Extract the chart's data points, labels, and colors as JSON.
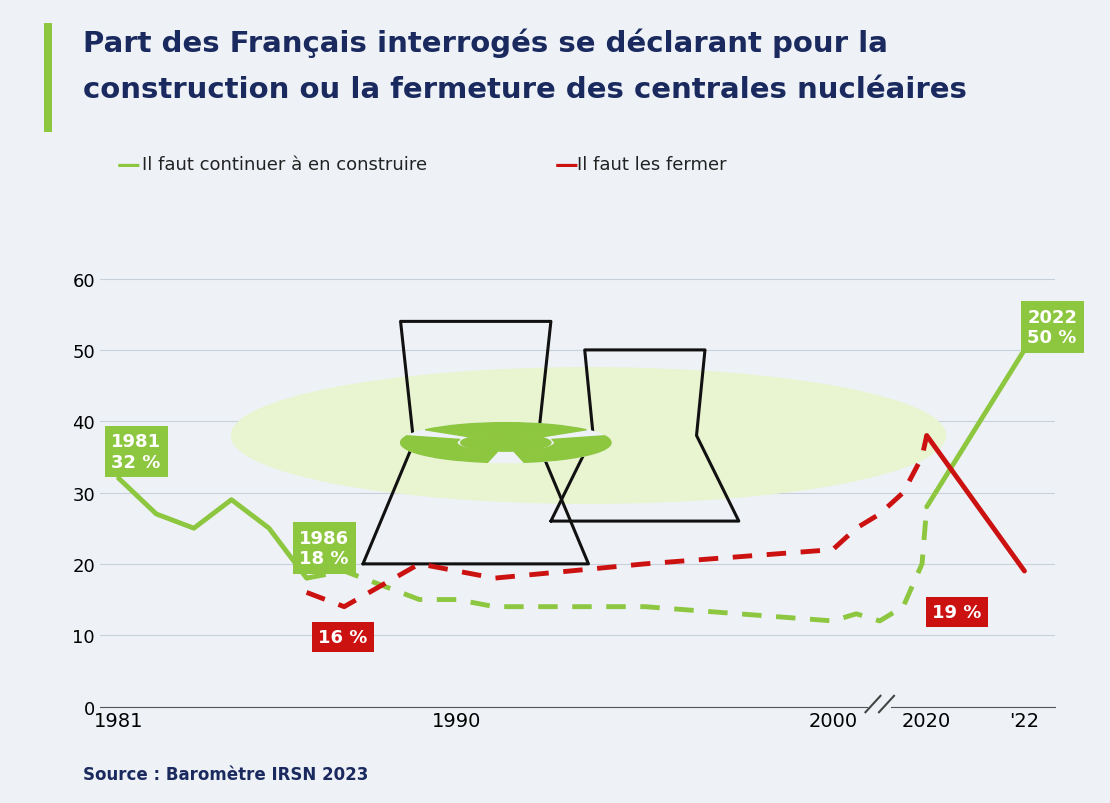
{
  "title_line1": "Part des Français interrogés se déclarant pour la",
  "title_line2": "construction ou la fermeture des centrales nucléaires",
  "title_color": "#1a2a5e",
  "title_fontsize": 21,
  "accent_bar_color": "#8dc63f",
  "background_color": "#eef2f7",
  "legend_green_label": "Il faut continuer à en construire",
  "legend_red_label": "Il faut les fermer",
  "source_text": "Source : Baromètre IRSN 2023",
  "green_line_color": "#8dc63f",
  "red_line_color": "#cc1111",
  "green_data": {
    "x": [
      1981,
      1982,
      1983,
      1984,
      1985,
      1986,
      1987,
      1988,
      1989,
      1990,
      1991,
      1995,
      2000,
      2005,
      2010,
      2015,
      2019,
      2020,
      2022
    ],
    "y": [
      32,
      27,
      25,
      29,
      25,
      18,
      19,
      17,
      15,
      15,
      14,
      14,
      12,
      13,
      12,
      14,
      20,
      28,
      50
    ]
  },
  "red_data": {
    "x": [
      1986,
      1987,
      1988,
      1989,
      1990,
      1991,
      1995,
      2000,
      2005,
      2010,
      2015,
      2019,
      2020,
      2022
    ],
    "y": [
      16,
      14,
      17,
      20,
      19,
      18,
      20,
      22,
      25,
      27,
      30,
      35,
      38,
      19
    ]
  },
  "ylim": [
    0,
    62
  ],
  "yticks": [
    0,
    10,
    20,
    30,
    40,
    50,
    60
  ],
  "grid_color": "#c8d0db",
  "box_green_color": "#8dc63f",
  "box_red_color": "#cc1111",
  "box_text_color": "#ffffff"
}
